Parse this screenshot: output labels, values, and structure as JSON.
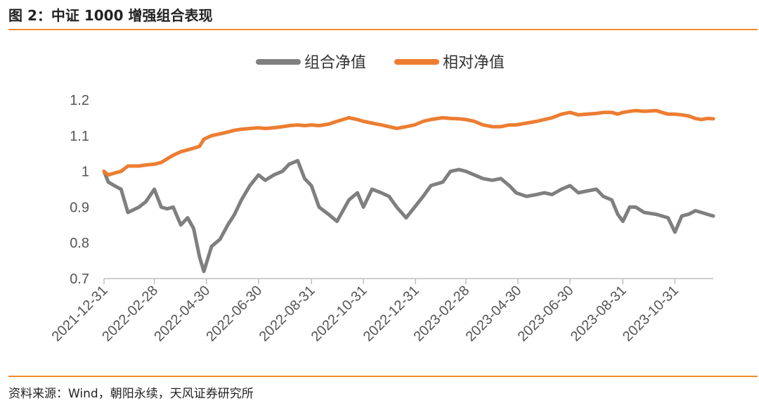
{
  "title": "图 2：中证 1000 增强组合表现",
  "source": "资料来源：Wind，朝阳永续，天风证券研究所",
  "colors": {
    "accent": "#f08a2e",
    "series_portfolio": "#7f7f7f",
    "series_relative": "#ed7d31"
  },
  "chart_data": {
    "type": "line",
    "title": "",
    "xlabel": "",
    "ylabel": "",
    "ylim": [
      0.7,
      1.2
    ],
    "yticks": [
      "0.7",
      "0.8",
      "0.9",
      "1",
      "1.1",
      "1.2"
    ],
    "xlim": [
      "2021-12-31",
      "2023-12-15"
    ],
    "xticks": [
      "2021-12-31",
      "2022-02-28",
      "2022-04-30",
      "2022-06-30",
      "2022-08-31",
      "2022-10-31",
      "2022-12-31",
      "2023-02-28",
      "2023-04-30",
      "2023-06-30",
      "2023-08-31",
      "2023-10-31"
    ],
    "grid": false,
    "legend": "top-center",
    "series": [
      {
        "name": "组合净值",
        "x": [
          "2021-12-31",
          "2022-01-05",
          "2022-01-12",
          "2022-01-20",
          "2022-01-28",
          "2022-02-10",
          "2022-02-18",
          "2022-02-28",
          "2022-03-08",
          "2022-03-15",
          "2022-03-22",
          "2022-03-31",
          "2022-04-08",
          "2022-04-15",
          "2022-04-22",
          "2022-04-27",
          "2022-05-06",
          "2022-05-16",
          "2022-05-25",
          "2022-06-02",
          "2022-06-10",
          "2022-06-20",
          "2022-06-30",
          "2022-07-08",
          "2022-07-18",
          "2022-07-28",
          "2022-08-05",
          "2022-08-15",
          "2022-08-23",
          "2022-08-31",
          "2022-09-09",
          "2022-09-20",
          "2022-09-30",
          "2022-10-14",
          "2022-10-24",
          "2022-10-31",
          "2022-11-10",
          "2022-11-21",
          "2022-11-30",
          "2022-12-09",
          "2022-12-20",
          "2022-12-30",
          "2023-01-09",
          "2023-01-18",
          "2023-02-01",
          "2023-02-10",
          "2023-02-20",
          "2023-02-28",
          "2023-03-10",
          "2023-03-20",
          "2023-03-31",
          "2023-04-10",
          "2023-04-20",
          "2023-04-28",
          "2023-05-10",
          "2023-05-22",
          "2023-05-31",
          "2023-06-09",
          "2023-06-20",
          "2023-06-30",
          "2023-07-10",
          "2023-07-20",
          "2023-07-31",
          "2023-08-08",
          "2023-08-18",
          "2023-08-25",
          "2023-08-31",
          "2023-09-08",
          "2023-09-15",
          "2023-09-25",
          "2023-10-09",
          "2023-10-16",
          "2023-10-23",
          "2023-10-31",
          "2023-11-08",
          "2023-11-16",
          "2023-11-24",
          "2023-12-01",
          "2023-12-08",
          "2023-12-15"
        ],
        "values": [
          1.0,
          0.97,
          0.96,
          0.95,
          0.885,
          0.9,
          0.915,
          0.95,
          0.9,
          0.895,
          0.9,
          0.85,
          0.87,
          0.84,
          0.76,
          0.72,
          0.79,
          0.81,
          0.85,
          0.88,
          0.92,
          0.96,
          0.99,
          0.975,
          0.99,
          1.0,
          1.02,
          1.03,
          0.98,
          0.96,
          0.9,
          0.88,
          0.86,
          0.92,
          0.94,
          0.9,
          0.95,
          0.94,
          0.93,
          0.9,
          0.87,
          0.9,
          0.93,
          0.96,
          0.97,
          1.0,
          1.005,
          1.0,
          0.99,
          0.98,
          0.975,
          0.98,
          0.96,
          0.94,
          0.93,
          0.935,
          0.94,
          0.935,
          0.95,
          0.96,
          0.94,
          0.945,
          0.95,
          0.93,
          0.92,
          0.88,
          0.86,
          0.9,
          0.9,
          0.885,
          0.88,
          0.875,
          0.87,
          0.83,
          0.875,
          0.88,
          0.89,
          0.885,
          0.88,
          0.875
        ]
      },
      {
        "name": "相对净值",
        "x": [
          "2021-12-31",
          "2022-01-05",
          "2022-01-12",
          "2022-01-20",
          "2022-01-28",
          "2022-02-10",
          "2022-02-18",
          "2022-02-28",
          "2022-03-08",
          "2022-03-15",
          "2022-03-22",
          "2022-03-31",
          "2022-04-08",
          "2022-04-15",
          "2022-04-22",
          "2022-04-27",
          "2022-05-06",
          "2022-05-16",
          "2022-05-25",
          "2022-06-02",
          "2022-06-10",
          "2022-06-20",
          "2022-06-30",
          "2022-07-08",
          "2022-07-18",
          "2022-07-28",
          "2022-08-05",
          "2022-08-15",
          "2022-08-23",
          "2022-08-31",
          "2022-09-09",
          "2022-09-20",
          "2022-09-30",
          "2022-10-14",
          "2022-10-24",
          "2022-10-31",
          "2022-11-10",
          "2022-11-21",
          "2022-11-30",
          "2022-12-09",
          "2022-12-20",
          "2022-12-30",
          "2023-01-09",
          "2023-01-18",
          "2023-02-01",
          "2023-02-10",
          "2023-02-20",
          "2023-02-28",
          "2023-03-10",
          "2023-03-20",
          "2023-03-31",
          "2023-04-10",
          "2023-04-20",
          "2023-04-28",
          "2023-05-10",
          "2023-05-22",
          "2023-05-31",
          "2023-06-09",
          "2023-06-20",
          "2023-06-30",
          "2023-07-10",
          "2023-07-20",
          "2023-07-31",
          "2023-08-08",
          "2023-08-18",
          "2023-08-25",
          "2023-08-31",
          "2023-09-08",
          "2023-09-15",
          "2023-09-25",
          "2023-10-09",
          "2023-10-16",
          "2023-10-23",
          "2023-10-31",
          "2023-11-08",
          "2023-11-16",
          "2023-11-24",
          "2023-12-01",
          "2023-12-08",
          "2023-12-15"
        ],
        "values": [
          1.0,
          0.99,
          0.995,
          1.0,
          1.015,
          1.015,
          1.018,
          1.02,
          1.025,
          1.035,
          1.045,
          1.055,
          1.06,
          1.065,
          1.07,
          1.09,
          1.1,
          1.105,
          1.11,
          1.115,
          1.118,
          1.12,
          1.122,
          1.12,
          1.122,
          1.125,
          1.128,
          1.13,
          1.128,
          1.13,
          1.128,
          1.132,
          1.14,
          1.15,
          1.145,
          1.14,
          1.135,
          1.13,
          1.125,
          1.12,
          1.125,
          1.13,
          1.14,
          1.145,
          1.15,
          1.148,
          1.147,
          1.145,
          1.14,
          1.13,
          1.125,
          1.125,
          1.13,
          1.13,
          1.135,
          1.14,
          1.145,
          1.15,
          1.16,
          1.165,
          1.158,
          1.16,
          1.162,
          1.165,
          1.165,
          1.16,
          1.165,
          1.168,
          1.17,
          1.168,
          1.17,
          1.165,
          1.16,
          1.16,
          1.158,
          1.155,
          1.148,
          1.145,
          1.148,
          1.147
        ]
      }
    ]
  }
}
